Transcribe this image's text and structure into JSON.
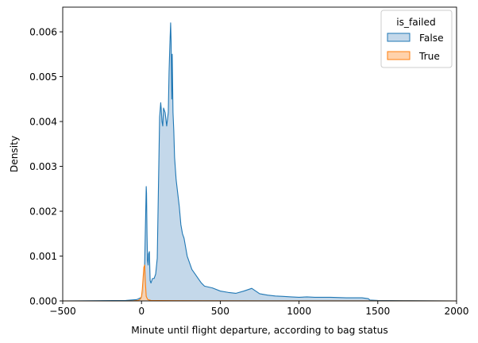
{
  "chart_data": {
    "type": "area",
    "xlabel": "Minute until flight departure, according to bag status",
    "ylabel": "Density",
    "xlim": [
      -500,
      2000
    ],
    "ylim": [
      0,
      0.00655
    ],
    "xticks": [
      -500,
      0,
      500,
      1000,
      1500,
      2000
    ],
    "yticks": [
      0.0,
      0.001,
      0.002,
      0.003,
      0.004,
      0.005,
      0.006
    ],
    "xtick_labels": [
      "−500",
      "0",
      "500",
      "1000",
      "1500",
      "2000"
    ],
    "ytick_labels": [
      "0.000",
      "0.001",
      "0.002",
      "0.003",
      "0.004",
      "0.005",
      "0.006"
    ],
    "grid": false,
    "legend": {
      "title": "is_failed",
      "position": "top-right"
    },
    "series": [
      {
        "name": "False",
        "color": "#1f77b4",
        "fill": "#c4d8ea",
        "x": [
          -500,
          -100,
          -30,
          0,
          10,
          20,
          28,
          30,
          32,
          35,
          38,
          42,
          45,
          50,
          55,
          60,
          65,
          70,
          80,
          90,
          100,
          115,
          122,
          125,
          130,
          135,
          140,
          150,
          160,
          170,
          175,
          180,
          185,
          188,
          192,
          195,
          200,
          205,
          210,
          220,
          230,
          240,
          250,
          260,
          270,
          280,
          290,
          300,
          320,
          340,
          360,
          380,
          400,
          450,
          500,
          550,
          600,
          650,
          700,
          750,
          800,
          850,
          900,
          950,
          1000,
          1050,
          1100,
          1200,
          1300,
          1400,
          1440,
          1450,
          1500,
          1700,
          2000
        ],
        "y": [
          0,
          1e-05,
          3e-05,
          8e-05,
          0.0002,
          0.0008,
          0.0022,
          0.00255,
          0.0024,
          0.0015,
          0.0009,
          0.0008,
          0.00105,
          0.0011,
          0.00045,
          0.0004,
          0.00045,
          0.0005,
          0.0005,
          0.0006,
          0.00095,
          0.0041,
          0.00442,
          0.0043,
          0.004,
          0.0039,
          0.0043,
          0.0042,
          0.0039,
          0.0042,
          0.0051,
          0.0057,
          0.0062,
          0.0058,
          0.0045,
          0.0055,
          0.0042,
          0.0038,
          0.0032,
          0.0027,
          0.0024,
          0.0021,
          0.0017,
          0.0015,
          0.0014,
          0.0012,
          0.001,
          0.0009,
          0.0007,
          0.0006,
          0.0005,
          0.0004,
          0.00033,
          0.00029,
          0.00022,
          0.00019,
          0.00017,
          0.00022,
          0.00028,
          0.00016,
          0.00013,
          0.00011,
          0.0001,
          9e-05,
          8e-05,
          9e-05,
          8e-05,
          8e-05,
          7e-05,
          7e-05,
          5e-05,
          2e-05,
          1e-05,
          5e-06,
          0
        ]
      },
      {
        "name": "True",
        "color": "#ff7f0e",
        "fill": "#ffd2ab",
        "x": [
          -500,
          -100,
          -50,
          -20,
          -5,
          0,
          5,
          10,
          15,
          20,
          25,
          30,
          40,
          60,
          100,
          200,
          400,
          800,
          1200,
          2000
        ],
        "y": [
          0,
          0,
          3e-06,
          1e-05,
          5e-05,
          0.0001,
          0.00025,
          0.0005,
          0.00075,
          0.0008,
          0.0004,
          0.0001,
          3e-05,
          1e-05,
          8e-06,
          6e-06,
          4e-06,
          2e-06,
          1e-06,
          0
        ]
      }
    ]
  }
}
